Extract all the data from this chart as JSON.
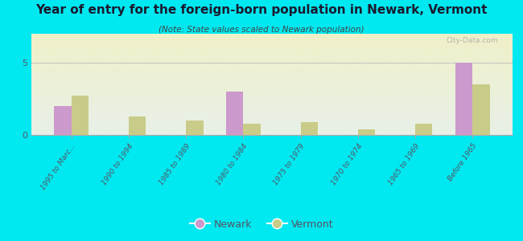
{
  "title": "Year of entry for the foreign-born population in Newark, Vermont",
  "subtitle": "(Note: State values scaled to Newark population)",
  "categories": [
    "1995 to Marc...",
    "1990 to 1994",
    "1985 to 1989",
    "1980 to 1984",
    "1975 to 1979",
    "1970 to 1974",
    "1965 to 1969",
    "Before 1965"
  ],
  "newark_values": [
    2,
    0,
    0,
    3,
    0,
    0,
    0,
    5
  ],
  "vermont_values": [
    2.7,
    1.3,
    1.0,
    0.8,
    0.9,
    0.4,
    0.8,
    3.5
  ],
  "newark_color": "#cc99cc",
  "vermont_color": "#c8cc88",
  "background_outer": "#00e8f0",
  "background_chart_top": "#e8f0e8",
  "background_chart_bottom": "#f0f0c8",
  "ylim": [
    0,
    7
  ],
  "yticks": [
    0,
    5
  ],
  "bar_width": 0.3,
  "watermark": "City-Data.com",
  "legend_newark": "Newark",
  "legend_vermont": "Vermont",
  "title_color": "#1a1a2e",
  "subtitle_color": "#444444",
  "tick_label_color": "#555566"
}
